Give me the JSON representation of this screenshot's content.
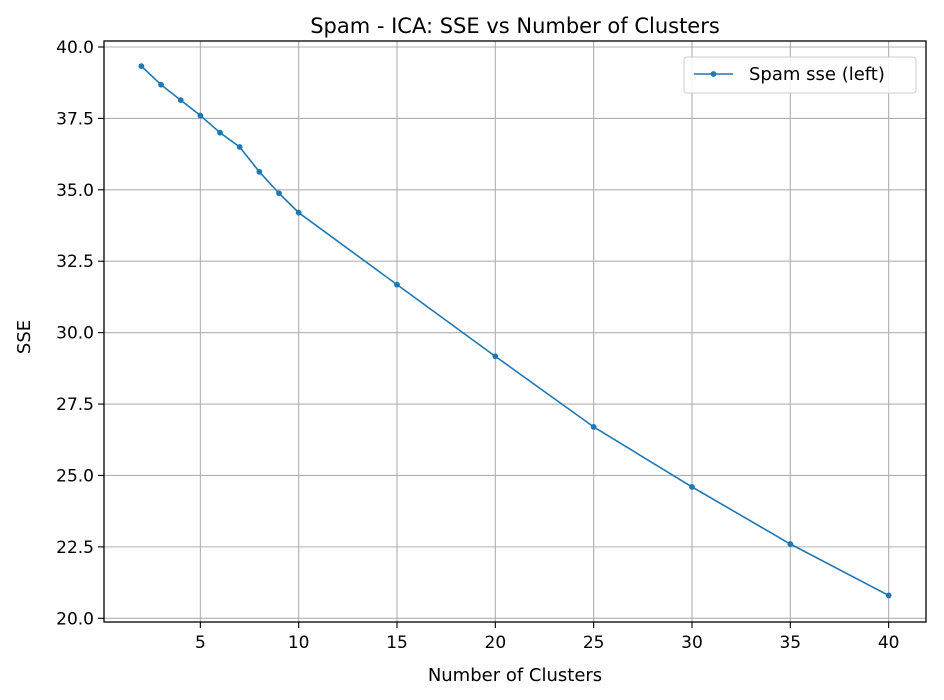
{
  "chart_data": {
    "type": "line",
    "title": "Spam - ICA: SSE vs Number of Clusters",
    "xlabel": "Number of Clusters",
    "ylabel": "SSE",
    "xlim": [
      0.1,
      41.9
    ],
    "ylim": [
      19.87,
      40.21
    ],
    "xticks": [
      5,
      10,
      15,
      20,
      25,
      30,
      35,
      40
    ],
    "xtick_labels": [
      "5",
      "10",
      "15",
      "20",
      "25",
      "30",
      "35",
      "40"
    ],
    "yticks": [
      20.0,
      22.5,
      25.0,
      27.5,
      30.0,
      32.5,
      35.0,
      37.5,
      40.0
    ],
    "ytick_labels": [
      "20.0",
      "22.5",
      "25.0",
      "27.5",
      "30.0",
      "32.5",
      "35.0",
      "37.5",
      "40.0"
    ],
    "grid": true,
    "legend_position": "top-right",
    "series": [
      {
        "name": "Spam sse (left)",
        "color": "#1f77b4",
        "marker": "circle",
        "x": [
          2,
          3,
          4,
          5,
          6,
          7,
          8,
          9,
          10,
          15,
          20,
          25,
          30,
          35,
          40
        ],
        "y": [
          39.33,
          38.68,
          38.14,
          37.6,
          37.0,
          36.5,
          35.63,
          34.88,
          34.2,
          31.68,
          29.17,
          26.7,
          24.6,
          22.6,
          20.8
        ]
      }
    ]
  }
}
